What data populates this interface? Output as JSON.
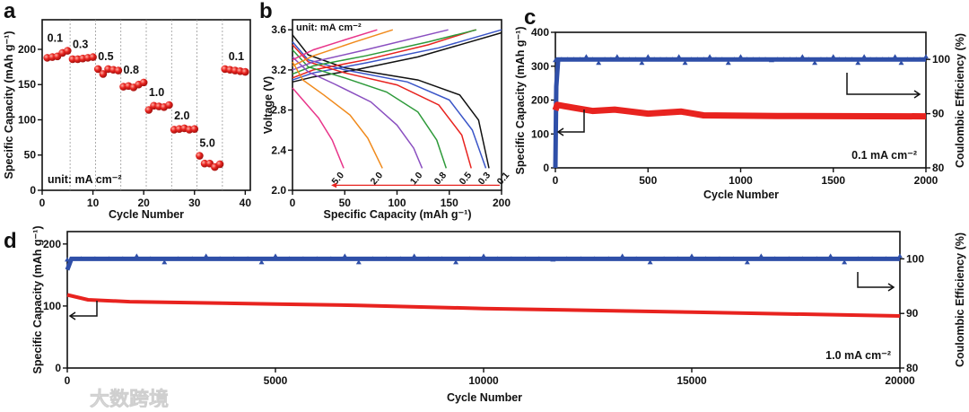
{
  "watermark": "大数跨境",
  "colors": {
    "capacity": "#e8231f",
    "ce": "#2f4fa8",
    "axis": "#111111"
  },
  "chart_data": [
    {
      "panel": "a",
      "type": "scatter",
      "xlabel": "Cycle Number",
      "ylabel": "Specific Capacity (mAh g⁻¹)",
      "xlim": [
        0,
        41
      ],
      "ylim": [
        0,
        242
      ],
      "xticks": [
        0,
        10,
        20,
        30,
        40
      ],
      "yticks": [
        0,
        50,
        100,
        150,
        200
      ],
      "dividers": [
        5.5,
        10.5,
        15.5,
        20.5,
        25.5,
        30.5,
        35.5
      ],
      "annotation": "unit: mA cm⁻²",
      "groups": [
        {
          "label": "0.1",
          "cycles": [
            1,
            2,
            3,
            4,
            5
          ],
          "values": [
            188,
            189,
            190,
            195,
            198
          ]
        },
        {
          "label": "0.3",
          "cycles": [
            6,
            7,
            8,
            9,
            10
          ],
          "values": [
            186,
            186,
            187,
            188,
            189
          ]
        },
        {
          "label": "0.5",
          "cycles": [
            11,
            12,
            13,
            14,
            15
          ],
          "values": [
            172,
            165,
            172,
            171,
            170
          ]
        },
        {
          "label": "0.8",
          "cycles": [
            16,
            17,
            18,
            19,
            20
          ],
          "values": [
            147,
            148,
            146,
            150,
            153
          ]
        },
        {
          "label": "1.0",
          "cycles": [
            21,
            22,
            23,
            24,
            25
          ],
          "values": [
            114,
            120,
            119,
            118,
            121
          ]
        },
        {
          "label": "2.0",
          "cycles": [
            26,
            27,
            28,
            29,
            30
          ],
          "values": [
            86,
            87,
            88,
            86,
            87
          ]
        },
        {
          "label": "5.0",
          "cycles": [
            31,
            32,
            33,
            34,
            35
          ],
          "values": [
            49,
            38,
            38,
            33,
            37
          ]
        },
        {
          "label": "0.1",
          "cycles": [
            36,
            37,
            38,
            39,
            40
          ],
          "values": [
            172,
            171,
            170,
            169,
            168
          ]
        }
      ]
    },
    {
      "panel": "b",
      "type": "line",
      "xlabel": "Specific Capacity (mAh g⁻¹)",
      "ylabel": "Voltage (V)",
      "xlim": [
        0,
        200
      ],
      "ylim": [
        2.0,
        3.7
      ],
      "xticks": [
        0,
        50,
        100,
        150,
        200
      ],
      "yticks": [
        2.0,
        2.4,
        2.8,
        3.2,
        3.6
      ],
      "annotation": "unit:  mA cm⁻²",
      "series": [
        {
          "name": "0.1",
          "color": "#111111",
          "charge": [
            [
              0,
              3.08
            ],
            [
              20,
              3.13
            ],
            [
              60,
              3.2
            ],
            [
              120,
              3.33
            ],
            [
              200,
              3.57
            ]
          ],
          "discharge": [
            [
              0,
              3.55
            ],
            [
              15,
              3.35
            ],
            [
              50,
              3.22
            ],
            [
              120,
              3.1
            ],
            [
              160,
              2.95
            ],
            [
              178,
              2.7
            ],
            [
              188,
              2.22
            ]
          ]
        },
        {
          "name": "0.3",
          "color": "#3a55c8",
          "charge": [
            [
              0,
              3.1
            ],
            [
              20,
              3.17
            ],
            [
              70,
              3.27
            ],
            [
              140,
              3.42
            ],
            [
              200,
              3.6
            ]
          ],
          "discharge": [
            [
              0,
              3.48
            ],
            [
              15,
              3.3
            ],
            [
              50,
              3.2
            ],
            [
              110,
              3.08
            ],
            [
              150,
              2.9
            ],
            [
              172,
              2.6
            ],
            [
              185,
              2.22
            ]
          ]
        },
        {
          "name": "0.5",
          "color": "#e8231f",
          "charge": [
            [
              0,
              3.12
            ],
            [
              20,
              3.2
            ],
            [
              70,
              3.3
            ],
            [
              130,
              3.45
            ],
            [
              175,
              3.6
            ]
          ],
          "discharge": [
            [
              0,
              3.45
            ],
            [
              15,
              3.28
            ],
            [
              50,
              3.17
            ],
            [
              100,
              3.05
            ],
            [
              140,
              2.85
            ],
            [
              162,
              2.55
            ],
            [
              171,
              2.22
            ]
          ]
        },
        {
          "name": "0.8",
          "color": "#2e9a3a",
          "charge": [
            [
              0,
              3.16
            ],
            [
              20,
              3.24
            ],
            [
              70,
              3.34
            ],
            [
              130,
              3.48
            ],
            [
              176,
              3.6
            ]
          ],
          "discharge": [
            [
              0,
              3.4
            ],
            [
              15,
              3.23
            ],
            [
              50,
              3.12
            ],
            [
              90,
              2.98
            ],
            [
              120,
              2.78
            ],
            [
              138,
              2.5
            ],
            [
              147,
              2.22
            ]
          ]
        },
        {
          "name": "1.0",
          "color": "#8a4fc0",
          "charge": [
            [
              0,
              3.2
            ],
            [
              20,
              3.28
            ],
            [
              70,
              3.4
            ],
            [
              149,
              3.6
            ]
          ],
          "discharge": [
            [
              0,
              3.33
            ],
            [
              15,
              3.18
            ],
            [
              40,
              3.06
            ],
            [
              75,
              2.88
            ],
            [
              100,
              2.65
            ],
            [
              116,
              2.42
            ],
            [
              124,
              2.22
            ]
          ]
        },
        {
          "name": "2.0",
          "color": "#f08a1c",
          "charge": [
            [
              0,
              3.24
            ],
            [
              20,
              3.34
            ],
            [
              60,
              3.48
            ],
            [
              96,
              3.6
            ]
          ],
          "discharge": [
            [
              0,
              3.28
            ],
            [
              10,
              3.1
            ],
            [
              30,
              2.95
            ],
            [
              55,
              2.75
            ],
            [
              72,
              2.52
            ],
            [
              86,
              2.22
            ]
          ]
        },
        {
          "name": "5.0",
          "color": "#e8358a",
          "charge": [
            [
              0,
              3.3
            ],
            [
              20,
              3.4
            ],
            [
              50,
              3.5
            ],
            [
              81,
              3.6
            ]
          ],
          "discharge": [
            [
              0,
              3.02
            ],
            [
              10,
              2.9
            ],
            [
              25,
              2.72
            ],
            [
              38,
              2.5
            ],
            [
              49,
              2.22
            ]
          ]
        }
      ]
    },
    {
      "panel": "c",
      "type": "scatter",
      "xlabel": "Cycle Number",
      "ylabel": "Specific Capacity (mAh g⁻¹)",
      "y2label": "Coulombic Efficiency (%)",
      "xlim": [
        0,
        2000
      ],
      "ylim": [
        0,
        400
      ],
      "y2lim": [
        80,
        105
      ],
      "xticks": [
        0,
        500,
        1000,
        1500,
        2000
      ],
      "yticks": [
        0,
        100,
        200,
        300,
        400
      ],
      "y2ticks": [
        80,
        90,
        100
      ],
      "annotation": "0.1 mA cm⁻²",
      "capacity": [
        [
          0,
          170
        ],
        [
          10,
          186
        ],
        [
          50,
          182
        ],
        [
          200,
          168
        ],
        [
          320,
          172
        ],
        [
          500,
          160
        ],
        [
          680,
          166
        ],
        [
          800,
          155
        ],
        [
          1200,
          153
        ],
        [
          2000,
          152
        ]
      ],
      "coulombic_efficiency": [
        [
          0,
          80
        ],
        [
          5,
          95
        ],
        [
          15,
          100
        ],
        [
          2000,
          100
        ]
      ]
    },
    {
      "panel": "d",
      "type": "scatter",
      "xlabel": "Cycle Number",
      "ylabel": "Specific Capacity (mAh g⁻¹)",
      "y2label": "Coulombic Efficiency (%)",
      "xlim": [
        0,
        20000
      ],
      "ylim": [
        0,
        220
      ],
      "y2lim": [
        80,
        105
      ],
      "xticks": [
        0,
        5000,
        10000,
        15000,
        20000
      ],
      "yticks": [
        0,
        100,
        200
      ],
      "y2ticks": [
        80,
        90,
        100
      ],
      "annotation": "1.0  mA cm⁻²",
      "capacity": [
        [
          0,
          118
        ],
        [
          500,
          110
        ],
        [
          1500,
          107
        ],
        [
          5000,
          103
        ],
        [
          7000,
          101
        ],
        [
          10000,
          96
        ],
        [
          15000,
          90
        ],
        [
          20000,
          84
        ]
      ],
      "coulombic_efficiency": [
        [
          0,
          98
        ],
        [
          100,
          100
        ],
        [
          20000,
          100
        ]
      ]
    }
  ]
}
